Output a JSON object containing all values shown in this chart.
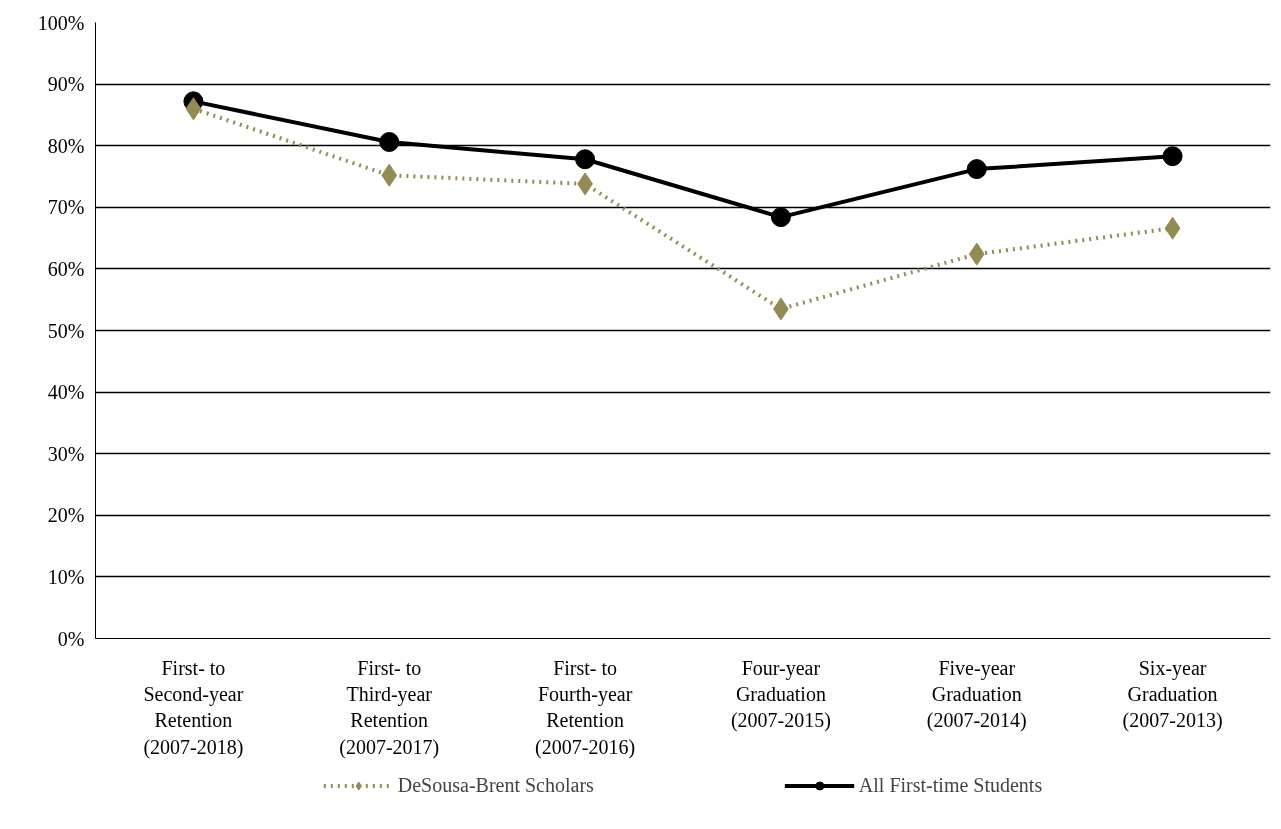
{
  "chart_data": {
    "type": "line",
    "categories": [
      "First- to\nSecond-year\nRetention\n(2007-2018)",
      "First- to\nThird-year\nRetention\n(2007-2017)",
      "First- to\nFourth-year\nRetention\n(2007-2016)",
      "Four-year\nGraduation\n(2007-2015)",
      "Five-year\nGraduation\n(2007-2014)",
      "Six-year\nGraduation\n(2007-2013)"
    ],
    "series": [
      {
        "name": "DeSousa-Brent Scholars",
        "color": "#948a54",
        "values": [
          86.0,
          75.2,
          73.8,
          53.5,
          62.4,
          66.6
        ],
        "marker": "diamond",
        "line_style": "dotted"
      },
      {
        "name": "All First-time Students",
        "color": "#000000",
        "values": [
          87.2,
          80.6,
          77.8,
          68.4,
          76.2,
          78.3
        ],
        "marker": "circle",
        "line_style": "solid"
      }
    ],
    "ylim": [
      0,
      100
    ],
    "yticks": [
      {
        "value": 0,
        "label": "0%"
      },
      {
        "value": 10,
        "label": "10%"
      },
      {
        "value": 20,
        "label": "20%"
      },
      {
        "value": 30,
        "label": "30%"
      },
      {
        "value": 40,
        "label": "40%"
      },
      {
        "value": 50,
        "label": "50%"
      },
      {
        "value": 60,
        "label": "60%"
      },
      {
        "value": 70,
        "label": "70%"
      },
      {
        "value": 80,
        "label": "80%"
      },
      {
        "value": 90,
        "label": "90%"
      },
      {
        "value": 100,
        "label": "100%"
      }
    ],
    "grid": "y",
    "legend": "bottom"
  }
}
